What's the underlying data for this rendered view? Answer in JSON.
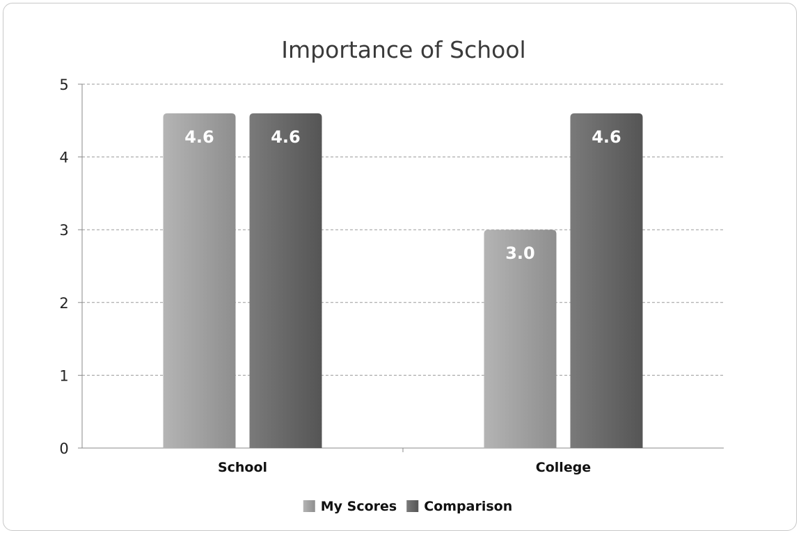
{
  "chart_data": {
    "type": "bar",
    "title": "Importance of School",
    "categories": [
      "School",
      "College"
    ],
    "series": [
      {
        "name": "My Scores",
        "values": [
          4.6,
          3.0
        ],
        "labels": [
          "4.6",
          "3.0"
        ],
        "color_light": "#b4b4b4",
        "color_dark": "#8e8e8e"
      },
      {
        "name": "Comparison",
        "values": [
          4.6,
          4.6
        ],
        "labels": [
          "4.6",
          "4.6"
        ],
        "color_light": "#7a7a7a",
        "color_dark": "#555555"
      }
    ],
    "ylim": [
      0,
      5
    ],
    "yticks": [
      "0",
      "1",
      "2",
      "3",
      "4",
      "5"
    ],
    "grid": true,
    "legend_position": "bottom"
  }
}
